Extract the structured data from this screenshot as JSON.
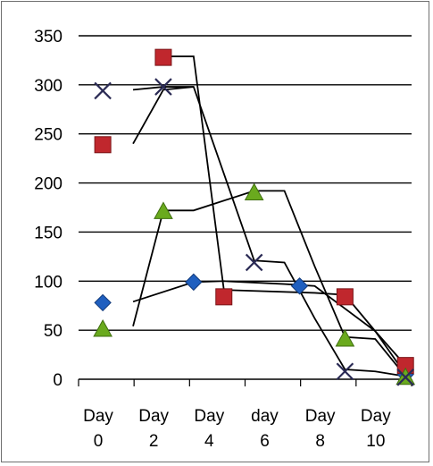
{
  "chart_data": {
    "type": "line",
    "title": "",
    "xlabel": "",
    "ylabel": "",
    "ylim": [
      0,
      350
    ],
    "yticks": [
      "350",
      "300",
      "250",
      "200",
      "150",
      "100",
      "50",
      "0"
    ],
    "categories": [
      [
        "Day",
        "0"
      ],
      [
        "Day",
        "2"
      ],
      [
        "Day",
        "4"
      ],
      [
        "day",
        "6"
      ],
      [
        "Day",
        "8"
      ],
      [
        "Day",
        "10"
      ]
    ],
    "grid": true,
    "legend": "none",
    "series": [
      {
        "marker": "diamond",
        "color": "#1f5fbf",
        "points": [
          [
            0,
            78
          ],
          [
            3,
            99
          ],
          [
            6.5,
            95
          ],
          [
            10,
            5
          ]
        ]
      },
      {
        "marker": "square",
        "color": "#c0272d",
        "points": [
          [
            0,
            239
          ],
          [
            2,
            328
          ],
          [
            4,
            84
          ],
          [
            8,
            84
          ],
          [
            10,
            14
          ]
        ]
      },
      {
        "marker": "triangle",
        "color": "#6aaa1e",
        "points": [
          [
            0,
            51
          ],
          [
            2,
            171
          ],
          [
            5,
            190
          ],
          [
            8,
            41
          ],
          [
            10,
            2
          ]
        ]
      },
      {
        "marker": "x",
        "color": "#2b2b55",
        "points": [
          [
            0,
            294
          ],
          [
            2,
            298
          ],
          [
            5,
            119
          ],
          [
            8,
            8
          ],
          [
            10,
            2
          ]
        ]
      }
    ],
    "trendlines": [
      [
        [
          1,
          79
        ],
        [
          3,
          99
        ],
        [
          4,
          100
        ],
        [
          6,
          97
        ],
        [
          7,
          95
        ],
        [
          9,
          49
        ],
        [
          10,
          5
        ]
      ],
      [
        [
          2,
          329
        ],
        [
          3,
          329
        ],
        [
          4,
          91
        ],
        [
          7,
          88
        ],
        [
          8,
          86
        ],
        [
          9,
          49
        ],
        [
          10,
          14
        ]
      ],
      [
        [
          1,
          54
        ],
        [
          2,
          172
        ],
        [
          3,
          172
        ],
        [
          5,
          192
        ],
        [
          6,
          192
        ],
        [
          7,
          115
        ],
        [
          8,
          43
        ],
        [
          9,
          41
        ],
        [
          10,
          3
        ]
      ],
      [
        [
          1,
          240
        ],
        [
          2,
          295
        ],
        [
          3,
          298
        ],
        [
          5,
          121
        ],
        [
          6,
          119
        ],
        [
          7,
          62
        ],
        [
          8,
          10
        ],
        [
          9,
          8
        ],
        [
          10,
          3
        ]
      ],
      [
        [
          1,
          295
        ],
        [
          2,
          298
        ],
        [
          3,
          298
        ]
      ]
    ],
    "line_color": "#000000"
  }
}
